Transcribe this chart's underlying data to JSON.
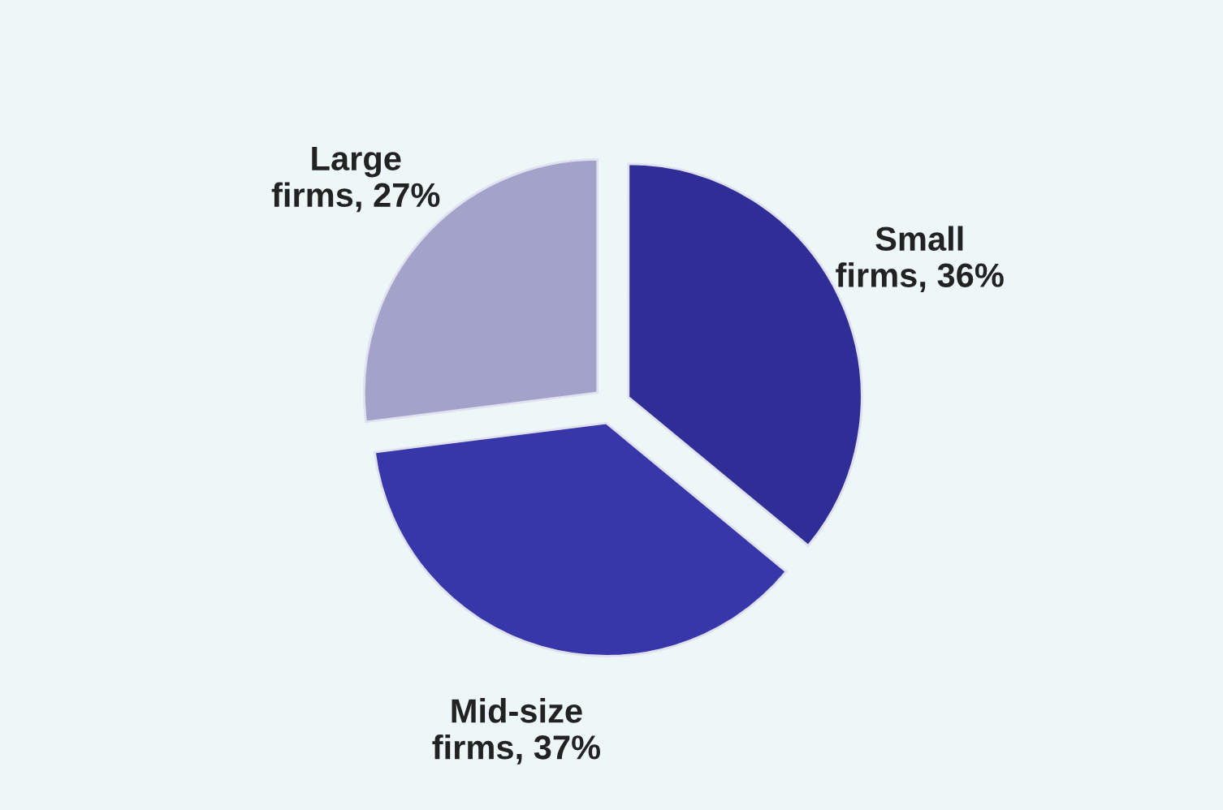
{
  "chart_data": {
    "type": "pie",
    "categories": [
      "Small firms",
      "Mid-size firms",
      "Large firms"
    ],
    "values": [
      36,
      37,
      27
    ],
    "value_labels": [
      "36%",
      "37%",
      "27%"
    ],
    "colors": [
      "#2e2e96",
      "#3737aa",
      "#a3a3c9"
    ]
  }
}
